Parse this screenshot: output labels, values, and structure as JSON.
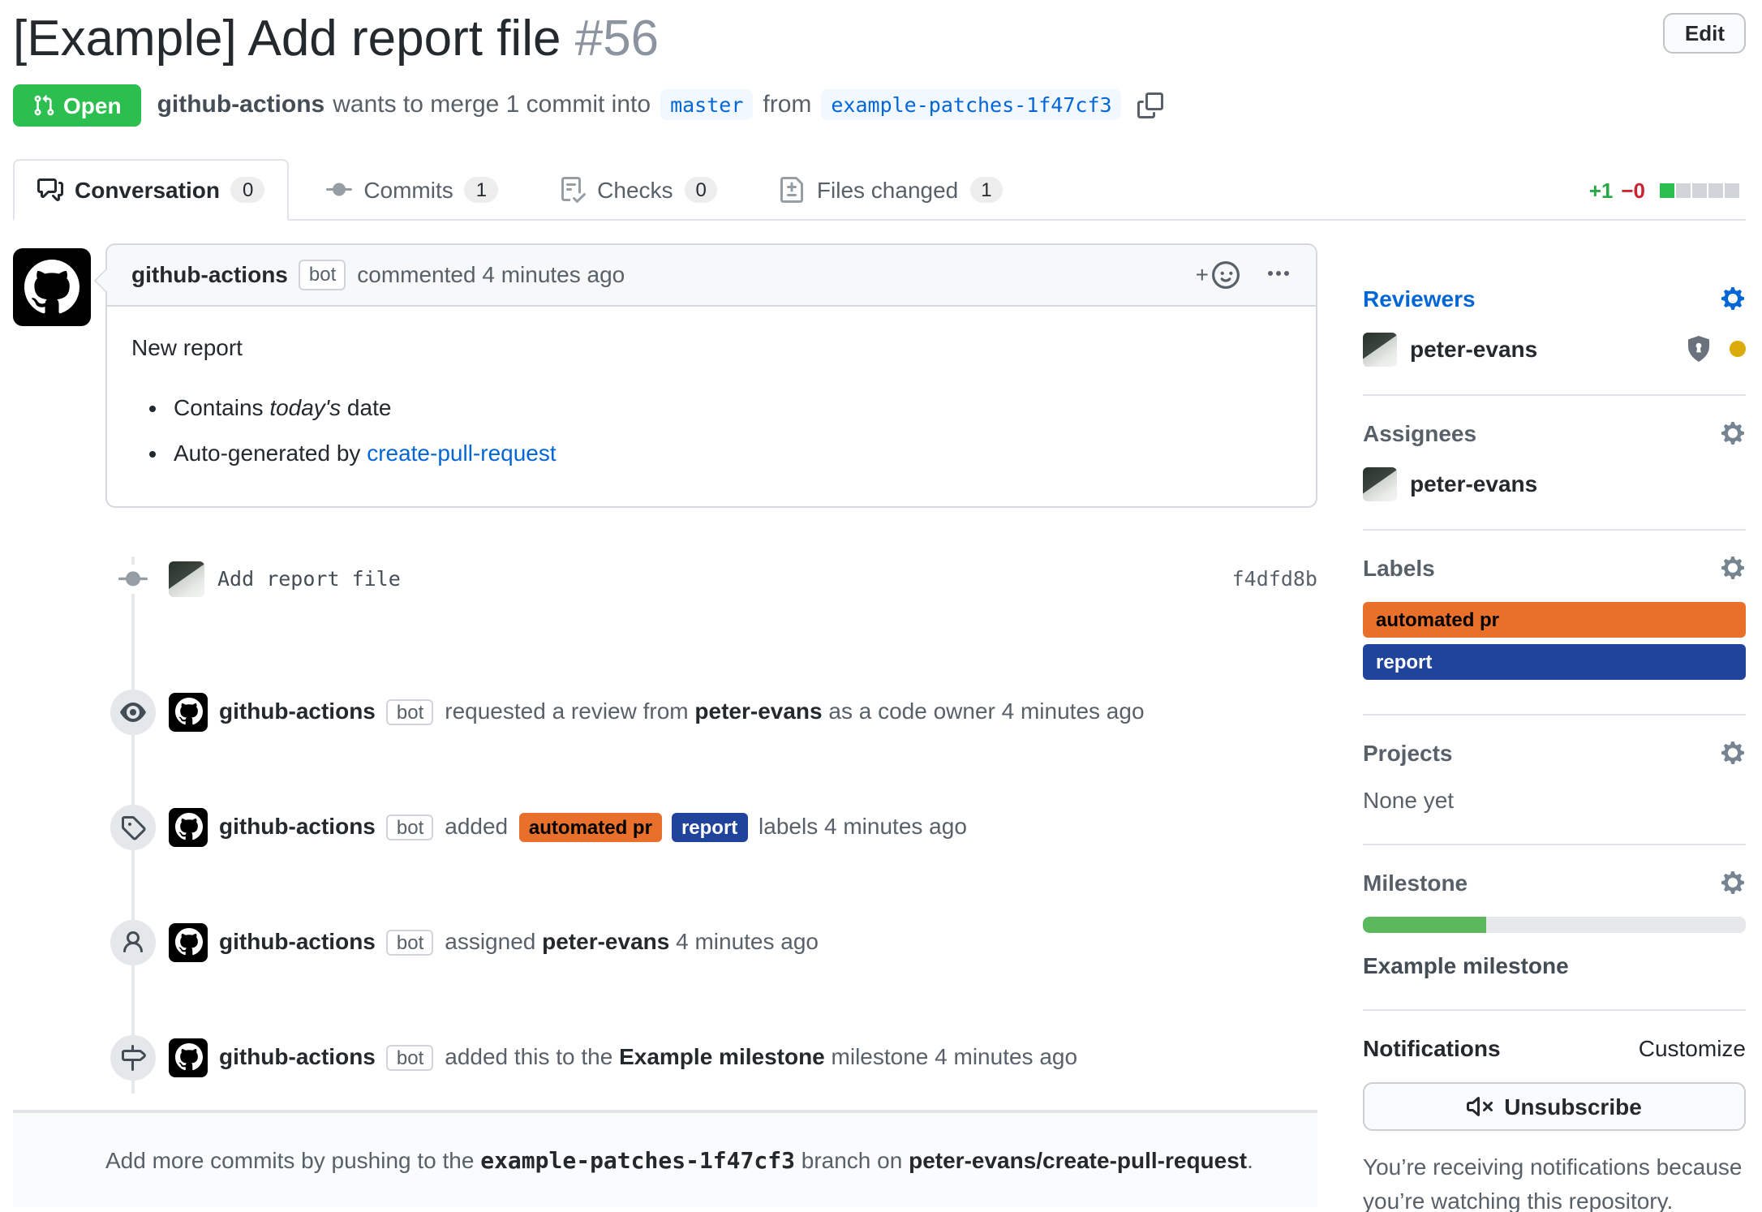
{
  "header": {
    "title": "[Example] Add report file",
    "number": "#56",
    "edit_label": "Edit",
    "state": "Open",
    "meta": {
      "author": "github-actions",
      "text_merge": "wants to merge 1 commit into",
      "base_branch": "master",
      "text_from": "from",
      "head_branch": "example-patches-1f47cf3"
    }
  },
  "tabs": [
    {
      "label": "Conversation",
      "count": "0"
    },
    {
      "label": "Commits",
      "count": "1"
    },
    {
      "label": "Checks",
      "count": "0"
    },
    {
      "label": "Files changed",
      "count": "1"
    }
  ],
  "diffstat": {
    "additions": "+1",
    "deletions": "−0",
    "blocks": [
      "added",
      "neutral",
      "neutral",
      "neutral",
      "neutral"
    ],
    "addition_color": "#28a745",
    "deletion_color": "#cb2431"
  },
  "comment": {
    "author": "github-actions",
    "bot_badge": "bot",
    "action": "commented",
    "time": "4 minutes ago",
    "body": {
      "intro": "New report",
      "bullet1_pre": "Contains ",
      "bullet1_italic": "today's",
      "bullet1_post": " date",
      "bullet2_pre": "Auto-generated by ",
      "bullet2_link": "create-pull-request"
    }
  },
  "commit": {
    "message": "Add report file",
    "sha": "f4dfd8b"
  },
  "events": [
    {
      "actor": "github-actions",
      "bot": "bot",
      "pre": "requested a review from ",
      "strong": "peter-evans",
      "post": " as a code owner ",
      "time": "4 minutes ago"
    },
    {
      "actor": "github-actions",
      "bot": "bot",
      "pre": "added ",
      "labels": [
        {
          "text": "automated pr",
          "bg": "#e8702a",
          "fg": "#000000"
        },
        {
          "text": "report",
          "bg": "#20449c",
          "fg": "#ffffff"
        }
      ],
      "post": " labels ",
      "time": "4 minutes ago"
    },
    {
      "actor": "github-actions",
      "bot": "bot",
      "pre": "assigned ",
      "strong": "peter-evans",
      "post": " ",
      "time": "4 minutes ago"
    },
    {
      "actor": "github-actions",
      "bot": "bot",
      "pre": "added this to the ",
      "strong": "Example milestone",
      "post": " milestone ",
      "time": "4 minutes ago"
    }
  ],
  "footer_note": {
    "pre": "Add more commits by pushing to the ",
    "branch": "example-patches-1f47cf3",
    "mid": " branch on ",
    "repo": "peter-evans/create-pull-request",
    "end": "."
  },
  "sidebar": {
    "reviewers": {
      "heading": "Reviewers",
      "user": "peter-evans",
      "pending_dot_color": "#dbab09"
    },
    "assignees": {
      "heading": "Assignees",
      "user": "peter-evans"
    },
    "labels": {
      "heading": "Labels",
      "items": [
        {
          "name": "automated pr",
          "bg": "#e8702a",
          "fg": "#000000"
        },
        {
          "name": "report",
          "bg": "#20449c",
          "fg": "#ffffff"
        }
      ]
    },
    "projects": {
      "heading": "Projects",
      "empty": "None yet"
    },
    "milestone": {
      "heading": "Milestone",
      "name": "Example milestone",
      "progress": "32%",
      "bar_color": "#5cb85c"
    },
    "notifications": {
      "heading": "Notifications",
      "customize": "Customize",
      "button": "Unsubscribe",
      "note": "You’re receiving notifications because you’re watching this repository."
    }
  },
  "colors": {
    "open_state": "#2cbe4e",
    "link": "#0366d6"
  }
}
